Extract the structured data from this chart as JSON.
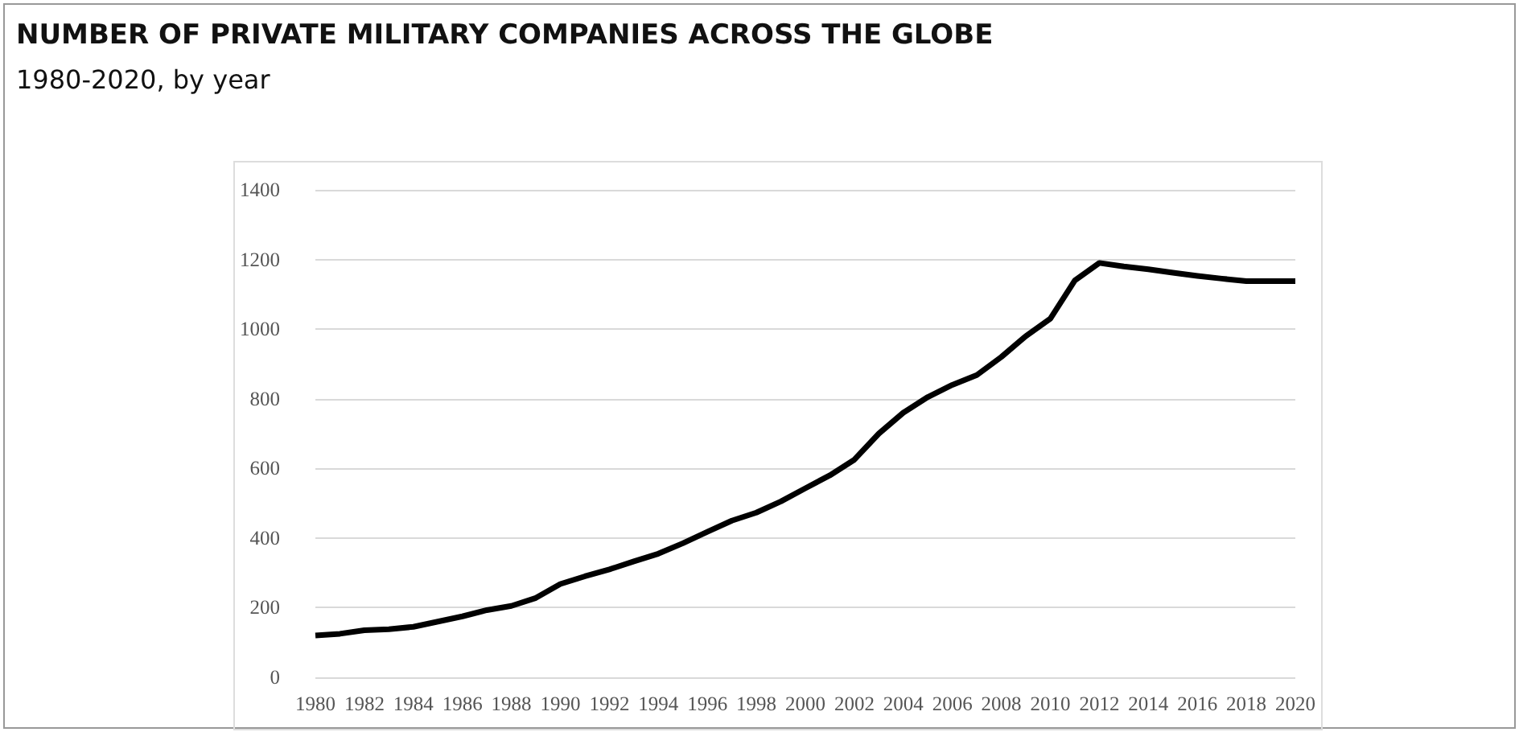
{
  "chart_data": {
    "type": "line",
    "title": "NUMBER OF PRIVATE MILITARY COMPANIES ACROSS THE GLOBE",
    "subtitle": "1980-2020, by year",
    "categories": [
      "1980",
      null,
      "1982",
      null,
      "1984",
      null,
      "1986",
      null,
      "1988",
      null,
      "1990",
      null,
      "1992",
      null,
      "1994",
      null,
      "1996",
      null,
      "1998",
      null,
      "2000",
      null,
      "2002",
      null,
      "2004",
      null,
      "2006",
      null,
      "2008",
      null,
      "2010",
      null,
      "2012",
      null,
      "2014",
      null,
      "2016",
      null,
      "2018",
      null,
      "2020"
    ],
    "series": [
      {
        "color": "#000000",
        "values": [
          120,
          125,
          135,
          138,
          145,
          160,
          175,
          193,
          205,
          228,
          268,
          290,
          310,
          333,
          355,
          385,
          418,
          450,
          473,
          505,
          543,
          580,
          625,
          700,
          760,
          805,
          840,
          868,
          920,
          980,
          1030,
          1140,
          1190,
          1180,
          1172,
          1162,
          1153,
          1145,
          1138,
          1138,
          1138
        ]
      }
    ],
    "ylim": [
      0,
      1400
    ],
    "yticks": [
      0,
      200,
      400,
      600,
      800,
      1000,
      1200,
      1400
    ],
    "grid": "y",
    "marker": "none",
    "line_style": "solid"
  }
}
